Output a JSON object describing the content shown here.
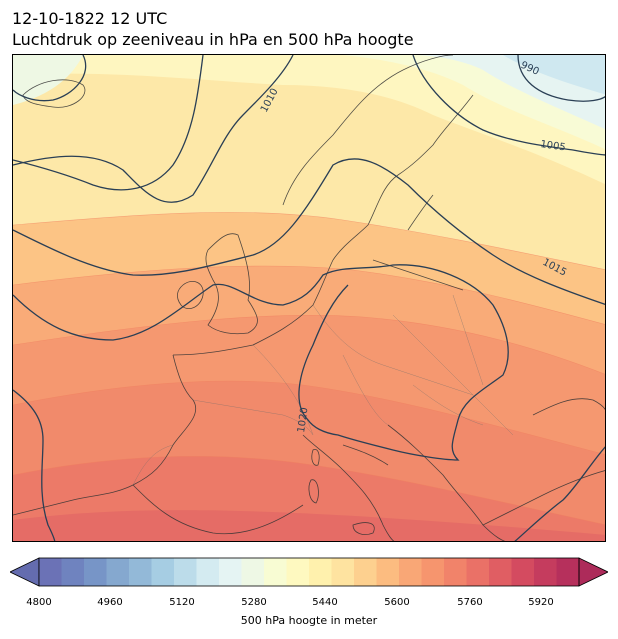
{
  "header": {
    "title_line1": "12-10-1822 12 UTC",
    "title_line2": "Luchtdruk op zeeniveau in hPa en 500 hPa hoogte"
  },
  "map": {
    "pressure_contours": [
      {
        "value": "990",
        "label": "990"
      },
      {
        "value": "1005",
        "label": "1005"
      },
      {
        "value": "1010",
        "label": "1010"
      },
      {
        "value": "1015",
        "label": "1015"
      },
      {
        "value": "1020",
        "label": "1020"
      }
    ],
    "contour_color": "#2a3f55",
    "coastline_color": "#333333"
  },
  "colorbar": {
    "label": "500 hPa hoogte in meter",
    "ticks": [
      "4800",
      "4960",
      "5120",
      "5280",
      "5440",
      "5600",
      "5760",
      "5920"
    ],
    "min": 4800,
    "max": 6000,
    "step": 40,
    "colors": [
      "#6b72b6",
      "#6f83bf",
      "#7795c7",
      "#85a8cf",
      "#93b9d8",
      "#a6cde3",
      "#bcdcea",
      "#d4ebf1",
      "#e5f4f3",
      "#eef8e5",
      "#f8fcd3",
      "#fef9c0",
      "#fff1ad",
      "#fee3a0",
      "#fdd08f",
      "#fcbc80",
      "#f9a776",
      "#f6956e",
      "#f1836a",
      "#ea7167",
      "#e05e63",
      "#d44b60",
      "#c53c5e",
      "#b6305c"
    ],
    "extend_under": "#646caf",
    "extend_over": "#ad2b5a"
  }
}
